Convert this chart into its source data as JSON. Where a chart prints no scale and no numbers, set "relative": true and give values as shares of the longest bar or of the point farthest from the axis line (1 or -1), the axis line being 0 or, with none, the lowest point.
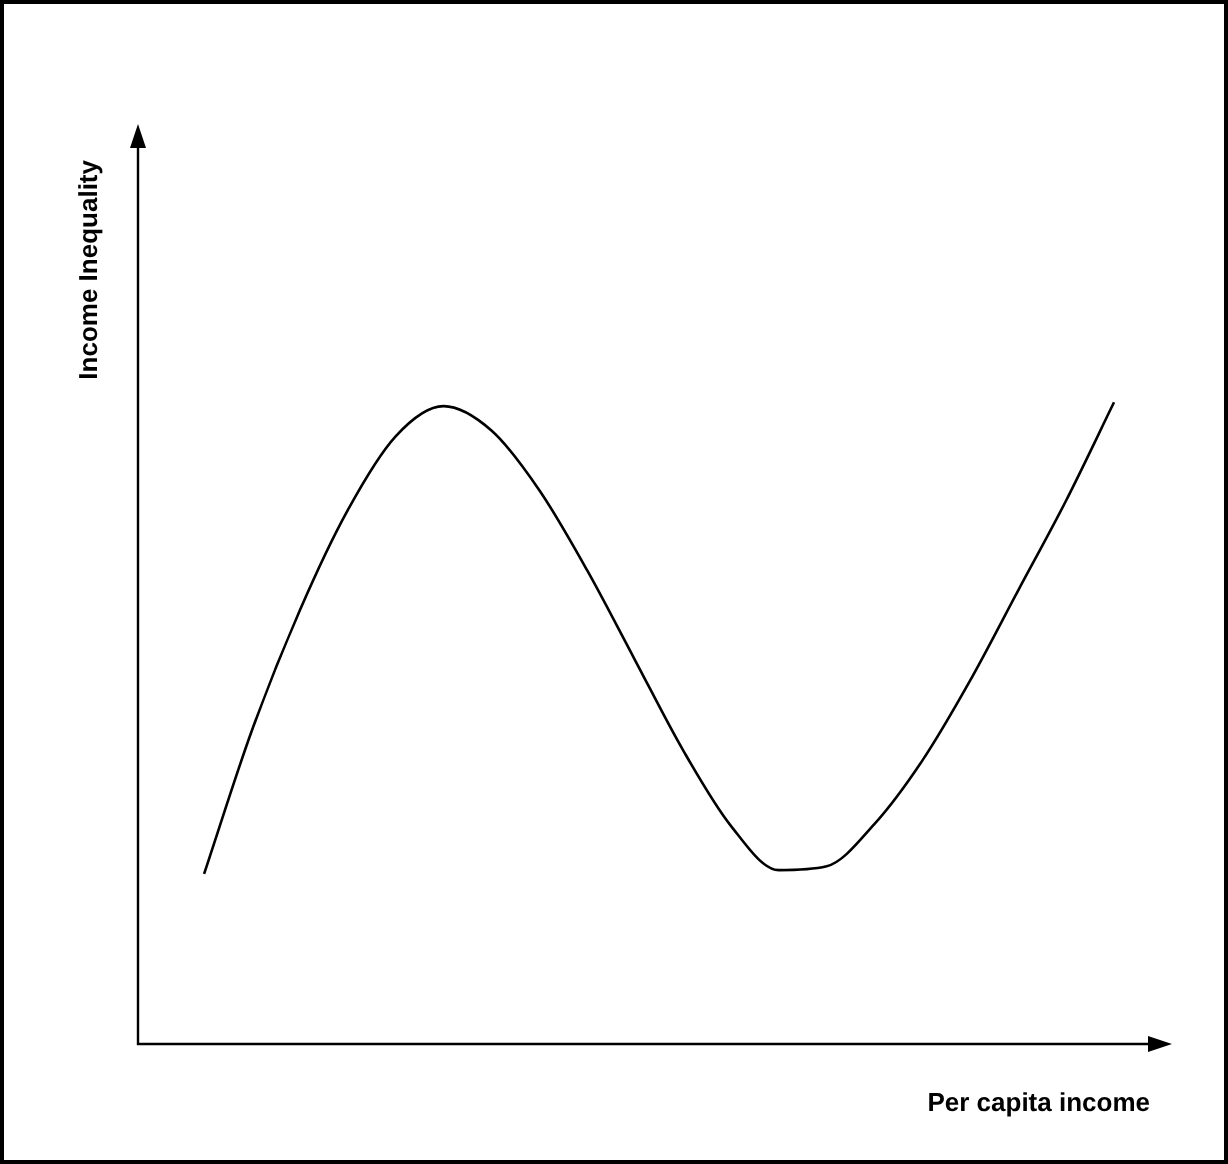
{
  "chart_data": {
    "type": "line",
    "xlabel": "Per capita income",
    "ylabel": "Income Inequality",
    "relative": true,
    "legend": false,
    "marker": "none",
    "line_style": "solid",
    "categories": [
      null,
      null,
      null,
      null,
      null,
      null,
      null,
      null,
      null,
      null,
      null,
      null,
      null,
      null,
      null,
      null,
      null,
      null,
      null,
      null
    ],
    "series": [
      {
        "color": "#000000",
        "values": [
          0.265,
          0.489,
          0.676,
          0.832,
          0.947,
          0.994,
          0.956,
          0.863,
          0.738,
          0.598,
          0.458,
          0.34,
          0.271,
          0.277,
          0.343,
          0.442,
          0.567,
          0.707,
          0.847,
          1
        ]
      }
    ]
  }
}
